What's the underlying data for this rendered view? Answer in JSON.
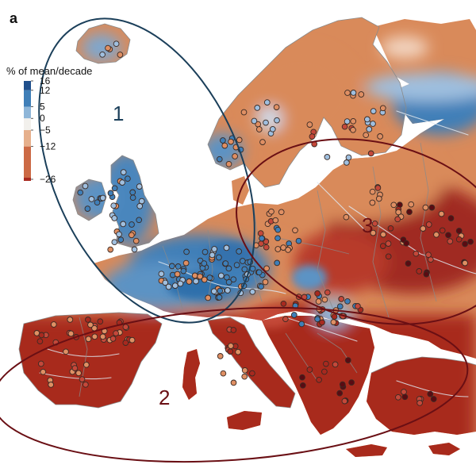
{
  "panel_label": "a",
  "legend": {
    "title": "% of mean/decade",
    "ticks": [
      "16",
      "12",
      "5",
      "0",
      "−5",
      "−12",
      "−26"
    ],
    "tick_values": [
      16,
      12,
      5,
      0,
      -5,
      -12,
      -26
    ],
    "colors": [
      "#1f4f8c",
      "#3f7fb8",
      "#8fb6d8",
      "#f2f0ec",
      "#e6b08c",
      "#cc6a45",
      "#a8291f"
    ]
  },
  "regions": [
    {
      "label": "1",
      "color": "#1b3f5a",
      "label_color": "#1b3f5a"
    },
    {
      "label": "2",
      "color": "#6a0f14",
      "label_color": "#6a0f14"
    },
    {
      "label": "3",
      "color": "#6a0f14",
      "label_color": "#6a0f14"
    }
  ],
  "colors": {
    "land_neutral": "#d98a5a",
    "blue_strong": "#3f7fb8",
    "blue_light": "#9fbfdf",
    "red_strong": "#a8291f",
    "red_mid": "#c4483a",
    "orange": "#df8f63",
    "station_dark": "#5a0b12"
  }
}
